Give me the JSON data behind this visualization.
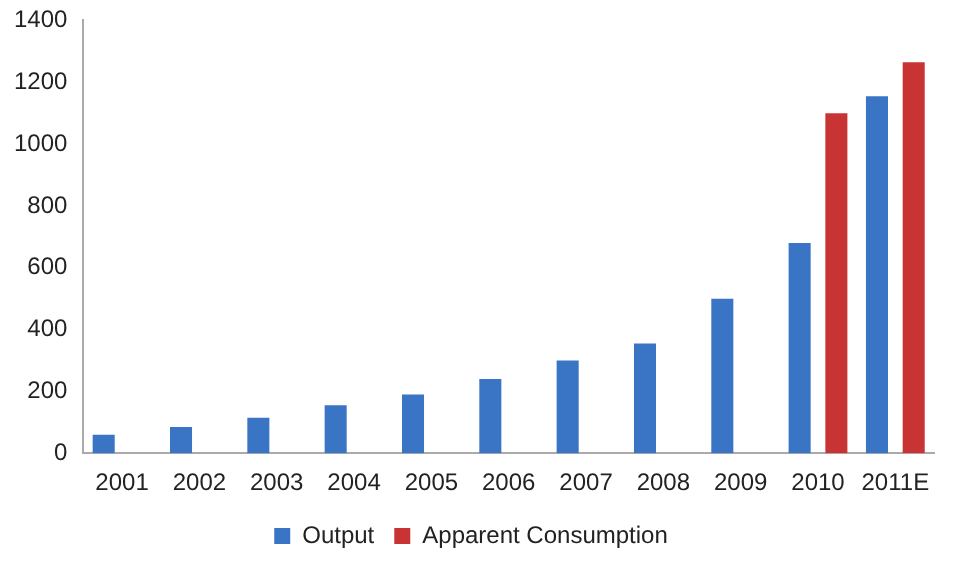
{
  "chart_data": {
    "type": "bar",
    "categories": [
      "2001",
      "2002",
      "2003",
      "2004",
      "2005",
      "2006",
      "2007",
      "2008",
      "2009",
      "2010",
      "2011E"
    ],
    "series": [
      {
        "name": "Output",
        "color": "#3a74c4",
        "values": [
          60,
          85,
          115,
          155,
          190,
          240,
          300,
          355,
          500,
          680,
          1155
        ]
      },
      {
        "name": "Apparent Consumption",
        "color": "#c83434",
        "values": [
          null,
          null,
          null,
          null,
          null,
          null,
          null,
          null,
          null,
          1100,
          1265
        ]
      }
    ],
    "ylim": [
      0,
      1400
    ],
    "yticks": [
      0,
      200,
      400,
      600,
      800,
      1000,
      1200,
      1400
    ],
    "grid": false,
    "legend": "bottom"
  }
}
